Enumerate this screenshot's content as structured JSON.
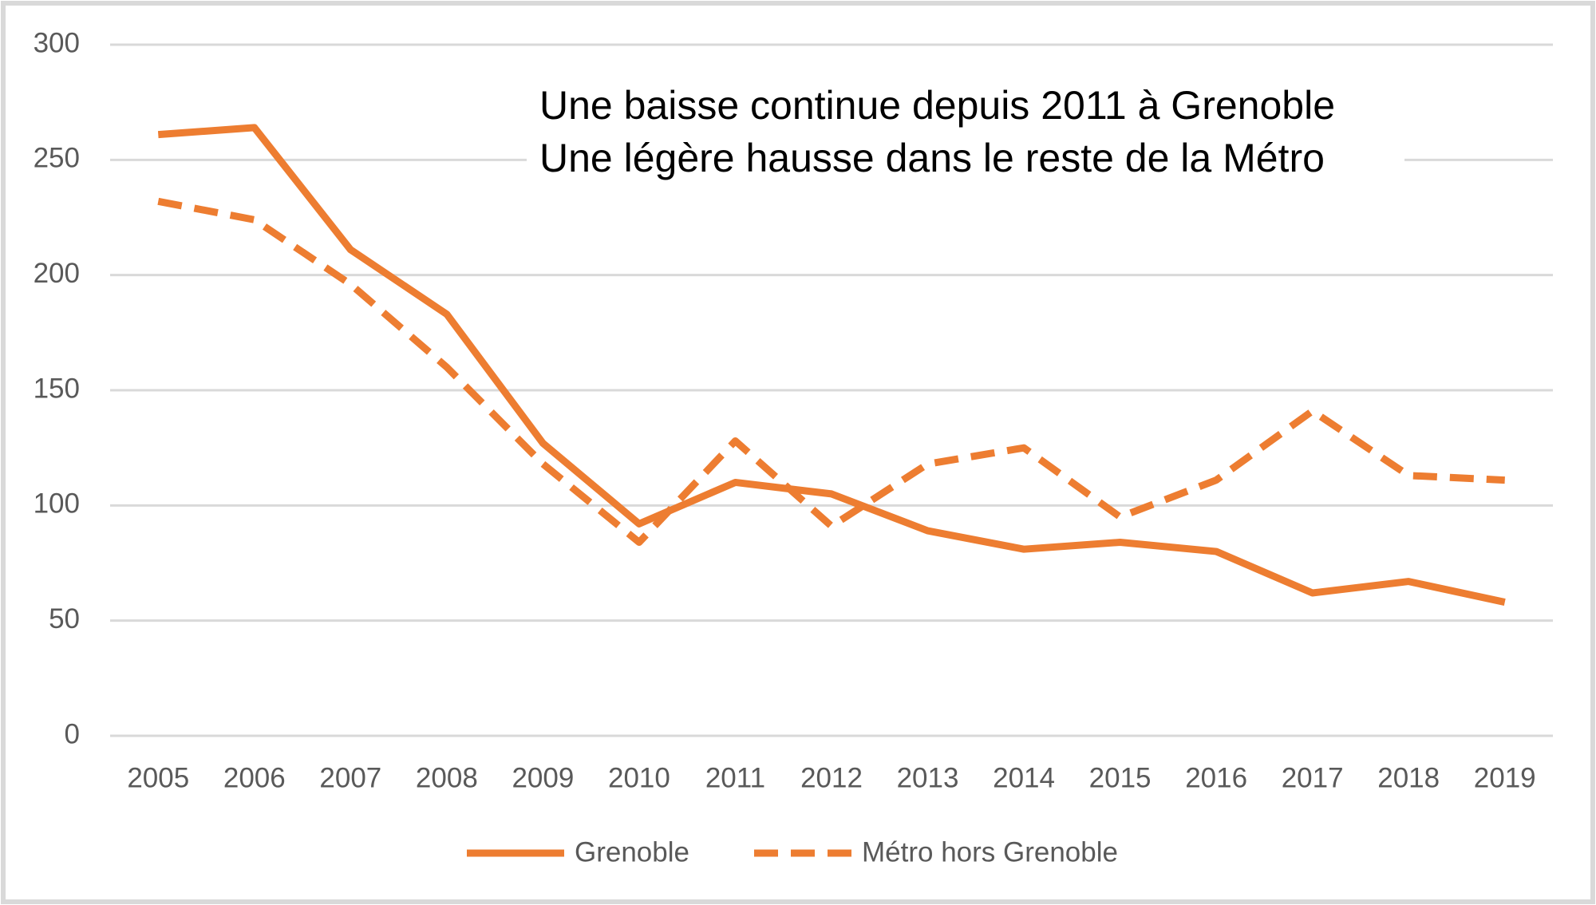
{
  "chart_data": {
    "type": "line",
    "annotations": [
      "Une baisse continue depuis 2011 à Grenoble",
      "Une légère hausse dans le reste de la Métro"
    ],
    "categories": [
      "2005",
      "2006",
      "2007",
      "2008",
      "2009",
      "2010",
      "2011",
      "2012",
      "2013",
      "2014",
      "2015",
      "2016",
      "2017",
      "2018",
      "2019"
    ],
    "series": [
      {
        "name": "Grenoble",
        "color": "#ed7d31",
        "dash": false,
        "values": [
          261,
          264,
          211,
          183,
          127,
          92,
          110,
          105,
          89,
          81,
          84,
          80,
          62,
          67,
          58
        ]
      },
      {
        "name": "Métro hors Grenoble",
        "color": "#ed7d31",
        "dash": true,
        "values": [
          232,
          224,
          196,
          160,
          118,
          84,
          128,
          91,
          118,
          125,
          95,
          111,
          141,
          113,
          111
        ]
      }
    ],
    "ylim": [
      0,
      300
    ],
    "yticks": [
      0,
      50,
      100,
      150,
      200,
      250,
      300
    ],
    "grid": true,
    "legend": "bottom"
  }
}
